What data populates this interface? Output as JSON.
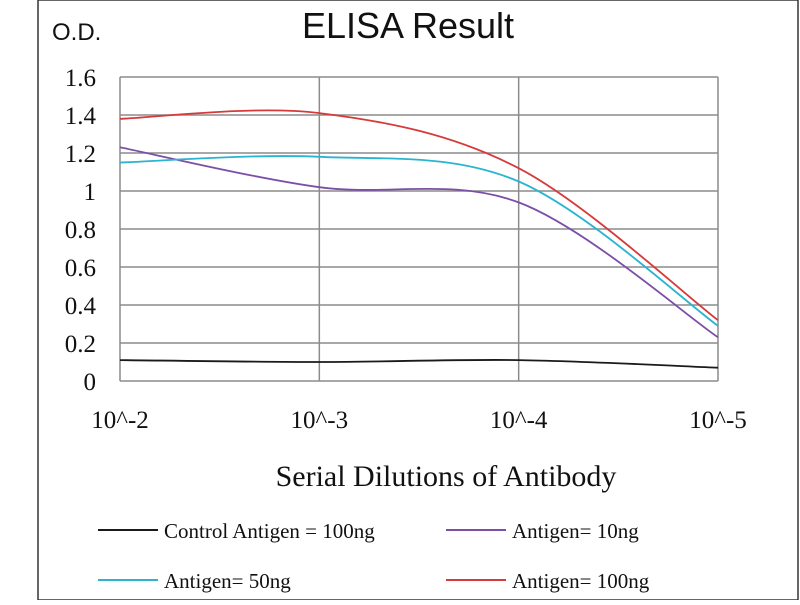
{
  "chart_data": {
    "type": "line",
    "title": "ELISA Result",
    "ylabel": "O.D.",
    "xlabel": "Serial Dilutions  of Antibody",
    "categories": [
      "10^-2",
      "10^-3",
      "10^-4",
      "10^-5"
    ],
    "yticks": [
      "1.6",
      "1.4",
      "1.2",
      "1",
      "0.8",
      "0.6",
      "0.4",
      "0.2",
      "0"
    ],
    "ylim": [
      0,
      1.6
    ],
    "grid": true,
    "legend_position": "bottom",
    "series": [
      {
        "name": "Control Antigen = 100ng",
        "color": "#1a1a1a",
        "values": [
          0.11,
          0.1,
          0.11,
          0.07
        ]
      },
      {
        "name": "Antigen= 10ng",
        "color": "#7b4fa6",
        "values": [
          1.23,
          1.02,
          0.94,
          0.23
        ]
      },
      {
        "name": "Antigen= 50ng",
        "color": "#2ab4d0",
        "values": [
          1.15,
          1.18,
          1.05,
          0.29
        ]
      },
      {
        "name": "Antigen= 100ng",
        "color": "#d63a3a",
        "values": [
          1.38,
          1.41,
          1.12,
          0.32
        ]
      }
    ]
  }
}
